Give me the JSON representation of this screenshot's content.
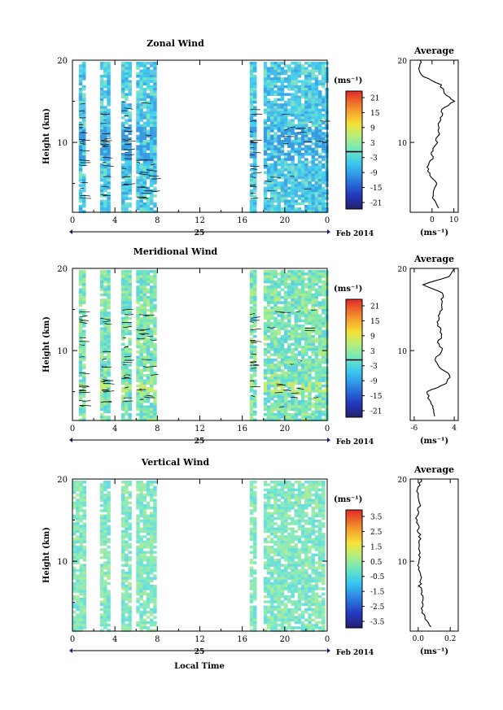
{
  "figure": {
    "x_label": "Local Time",
    "date_label": "Feb 2014",
    "day_label": "25"
  },
  "chart_data": [
    {
      "type": "heatmap",
      "title": "Zonal Wind",
      "ylabel": "Height (km)",
      "xlabel": "",
      "xlim": [
        0,
        24
      ],
      "ylim": [
        1.5,
        20
      ],
      "x_ticks": [
        "0",
        "4",
        "8",
        "12",
        "16",
        "20",
        "0"
      ],
      "y_ticks": [
        "10",
        "20"
      ],
      "colorbar_unit": "(ms⁻¹)",
      "colorbar_ticks": [
        "21",
        "15",
        "9",
        "3",
        "-3",
        "-9",
        "-15",
        "-21"
      ],
      "colorbar_range": [
        -24,
        24
      ],
      "data_intervals": [
        [
          0.6,
          1.2
        ],
        [
          2.6,
          3.5
        ],
        [
          4.6,
          5.4
        ],
        [
          6.0,
          7.9
        ],
        [
          16.7,
          17.3
        ],
        [
          18.0,
          24.0
        ]
      ],
      "average_profile": {
        "title": "Average",
        "xlabel": "(ms⁻¹)",
        "x_ticks": [
          "0",
          "10"
        ],
        "y_ticks": [
          "10",
          "20"
        ],
        "xlim": [
          -10,
          12
        ],
        "height": [
          2,
          3,
          4,
          5,
          6,
          7,
          8,
          9,
          10,
          11,
          12,
          13,
          14,
          15,
          16,
          17,
          18,
          19,
          20
        ],
        "value": [
          3,
          1,
          0,
          2,
          -1,
          -2,
          0,
          0,
          2,
          3,
          3,
          4,
          5,
          10,
          6,
          4,
          -4,
          -6,
          -5
        ]
      }
    },
    {
      "type": "heatmap",
      "title": "Meridional Wind",
      "ylabel": "Height (km)",
      "xlabel": "",
      "xlim": [
        0,
        24
      ],
      "ylim": [
        1.5,
        20
      ],
      "x_ticks": [
        "0",
        "4",
        "8",
        "12",
        "16",
        "20",
        "0"
      ],
      "y_ticks": [
        "10",
        "20"
      ],
      "colorbar_unit": "(ms⁻¹)",
      "colorbar_ticks": [
        "21",
        "15",
        "9",
        "3",
        "-3",
        "-9",
        "-15",
        "-21"
      ],
      "colorbar_range": [
        -24,
        24
      ],
      "data_intervals": [
        [
          0.6,
          1.2
        ],
        [
          2.6,
          3.5
        ],
        [
          4.6,
          5.4
        ],
        [
          6.0,
          7.9
        ],
        [
          16.7,
          17.3
        ],
        [
          18.0,
          24.0
        ]
      ],
      "average_profile": {
        "title": "Average",
        "xlabel": "(ms⁻¹)",
        "x_ticks": [
          "-6",
          "4"
        ],
        "y_ticks": [
          "10",
          "20"
        ],
        "xlim": [
          -7,
          5
        ],
        "height": [
          2,
          3,
          4,
          5,
          6,
          7,
          8,
          9,
          10,
          11,
          12,
          13,
          14,
          15,
          16,
          17,
          18,
          19,
          20
        ],
        "value": [
          -1,
          -1,
          -2,
          -3,
          2,
          3,
          0,
          -1,
          1,
          0,
          1,
          0,
          0,
          1,
          1,
          1,
          -4,
          3,
          4
        ]
      }
    },
    {
      "type": "heatmap",
      "title": "Vertical Wind",
      "ylabel": "Height (km)",
      "xlabel": "",
      "xlim": [
        0,
        24
      ],
      "ylim": [
        1.5,
        20
      ],
      "x_ticks": [
        "0",
        "4",
        "8",
        "12",
        "16",
        "20",
        "0"
      ],
      "y_ticks": [
        "10",
        "20"
      ],
      "colorbar_unit": "(ms⁻¹)",
      "colorbar_ticks": [
        "3.5",
        "2.5",
        "1.5",
        "0.5",
        "-0.5",
        "-1.5",
        "-2.5",
        "-3.5"
      ],
      "colorbar_range": [
        -4,
        4
      ],
      "data_intervals": [
        [
          0.0,
          1.2
        ],
        [
          2.6,
          3.5
        ],
        [
          4.6,
          5.4
        ],
        [
          6.0,
          7.8
        ],
        [
          16.7,
          17.3
        ],
        [
          18.0,
          23.8
        ]
      ],
      "average_profile": {
        "title": "Average",
        "xlabel": "(ms⁻¹)",
        "x_ticks": [
          "0.0",
          "0.2"
        ],
        "y_ticks": [
          "10",
          "20"
        ],
        "xlim": [
          -0.05,
          0.25
        ],
        "height": [
          2,
          3,
          4,
          5,
          6,
          7,
          8,
          9,
          10,
          11,
          12,
          13,
          14,
          15,
          16,
          17,
          18,
          19,
          20
        ],
        "value": [
          0.08,
          0.05,
          0.02,
          0.03,
          0.02,
          0.01,
          0.02,
          0.01,
          0.0,
          0.01,
          0.0,
          0.01,
          0.0,
          -0.01,
          0.0,
          0.01,
          -0.01,
          0.0,
          0.02
        ]
      }
    }
  ]
}
